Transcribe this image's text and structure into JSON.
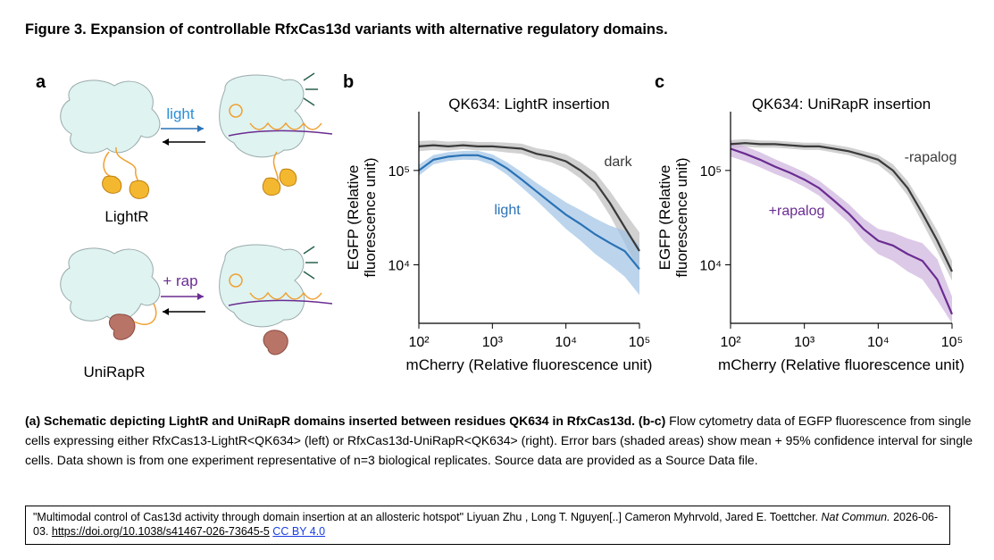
{
  "figure_title": "Figure 3. Expansion of controllable RfxCas13d variants with alternative regulatory domains.",
  "panel_a": {
    "panel": "a",
    "top_arrow_label": "light",
    "top_name": "LightR",
    "bottom_arrow_label": "+ rap",
    "bottom_name": "UniRapR"
  },
  "chart_data": [
    {
      "type": "line",
      "panel": "b",
      "title": "QK634: LightR insertion",
      "xlabel": "mCherry (Relative fluorescence unit)",
      "ylabel": [
        "EGFP (Relative",
        "fluorescence unit)"
      ],
      "log_x": true,
      "log_y": true,
      "xlim": [
        100,
        100000
      ],
      "ylim": [
        2400,
        420000
      ],
      "xticks": [
        {
          "value": 100,
          "label": "10²"
        },
        {
          "value": 1000,
          "label": "10³"
        },
        {
          "value": 10000,
          "label": "10⁴"
        },
        {
          "value": 100000,
          "label": "10⁵"
        }
      ],
      "yticks": [
        {
          "value": 10000,
          "label": "10⁴"
        },
        {
          "value": 100000,
          "label": "10⁵"
        }
      ],
      "x": [
        100,
        158,
        251,
        398,
        631,
        1000,
        1585,
        2512,
        3981,
        6310,
        10000,
        15849,
        25119,
        39811,
        63096,
        100000
      ],
      "series": [
        {
          "name": "dark",
          "color": "#3a3a3a",
          "band_color": "#bdbdbd",
          "values": [
            180000,
            185000,
            180000,
            185000,
            180000,
            180000,
            175000,
            170000,
            150000,
            140000,
            125000,
            100000,
            75000,
            45000,
            25000,
            14000
          ],
          "lower": [
            160000,
            165000,
            162000,
            168000,
            163000,
            162000,
            155000,
            150000,
            132000,
            122000,
            105000,
            82000,
            58000,
            33000,
            17000,
            8500
          ],
          "upper": [
            205000,
            208000,
            202000,
            205000,
            200000,
            200000,
            197000,
            192000,
            172000,
            162000,
            148000,
            122000,
            95000,
            60000,
            36000,
            22000
          ]
        },
        {
          "name": "light",
          "color": "#2a72b5",
          "band_color": "#9fc3e6",
          "values": [
            100000,
            130000,
            140000,
            145000,
            145000,
            130000,
            105000,
            80000,
            60000,
            45000,
            34000,
            27000,
            21000,
            17000,
            14000,
            9000
          ],
          "lower": [
            88000,
            116000,
            126000,
            130000,
            129000,
            114000,
            90000,
            66000,
            48000,
            34000,
            24000,
            18000,
            13000,
            10000,
            7500,
            4800
          ],
          "upper": [
            115000,
            146000,
            156000,
            161000,
            162000,
            148000,
            122000,
            96000,
            74000,
            58000,
            46000,
            38000,
            31000,
            26000,
            23000,
            16000
          ]
        }
      ]
    },
    {
      "type": "line",
      "panel": "c",
      "title": "QK634: UniRapR insertion",
      "xlabel": "mCherry (Relative fluorescence unit)",
      "ylabel": [
        "EGFP (Relative",
        "fluorescence unit)"
      ],
      "log_x": true,
      "log_y": true,
      "xlim": [
        100,
        100000
      ],
      "ylim": [
        2400,
        420000
      ],
      "xticks": [
        {
          "value": 100,
          "label": "10²"
        },
        {
          "value": 1000,
          "label": "10³"
        },
        {
          "value": 10000,
          "label": "10⁴"
        },
        {
          "value": 100000,
          "label": "10⁵"
        }
      ],
      "yticks": [
        {
          "value": 10000,
          "label": "10⁴"
        },
        {
          "value": 100000,
          "label": "10⁵"
        }
      ],
      "x": [
        100,
        158,
        251,
        398,
        631,
        1000,
        1585,
        2512,
        3981,
        6310,
        10000,
        15849,
        25119,
        39811,
        63096,
        100000
      ],
      "series": [
        {
          "name": "-rapalog",
          "color": "#3a3a3a",
          "band_color": "#bdbdbd",
          "values": [
            190000,
            195000,
            190000,
            190000,
            185000,
            180000,
            180000,
            170000,
            160000,
            145000,
            130000,
            100000,
            65000,
            35000,
            18000,
            8500
          ],
          "lower": [
            172000,
            178000,
            174000,
            174000,
            170000,
            165000,
            165000,
            155000,
            145000,
            130000,
            115000,
            86000,
            54000,
            28000,
            14000,
            6800
          ],
          "upper": [
            210000,
            214000,
            208000,
            207000,
            202000,
            197000,
            197000,
            187000,
            176000,
            161000,
            146000,
            116000,
            77000,
            43000,
            23000,
            11000
          ]
        },
        {
          "name": "+rapalog",
          "color": "#6a2c91",
          "band_color": "#cdb2dd",
          "values": [
            170000,
            150000,
            130000,
            110000,
            95000,
            80000,
            65000,
            48000,
            35000,
            24000,
            18000,
            16000,
            13000,
            11000,
            7000,
            3000
          ],
          "lower": [
            140000,
            125000,
            108000,
            92000,
            80000,
            67000,
            54000,
            39000,
            28000,
            18000,
            13000,
            11000,
            8500,
            7000,
            4200,
            2400
          ],
          "upper": [
            205000,
            180000,
            156000,
            132000,
            113000,
            96000,
            78000,
            59000,
            44000,
            31000,
            24000,
            22000,
            19000,
            17000,
            11500,
            4600
          ]
        }
      ]
    }
  ],
  "caption": {
    "bold": "(a) Schematic depicting LightR and UniRapR domains inserted between residues QK634 in RfxCas13d. (b-c)",
    "text": "Flow cytometry data of EGFP fluorescence from single cells expressing either RfxCas13-LightR<QK634> (left) or RfxCas13d-UniRapR<QK634> (right). Error bars (shaded areas) show mean + 95% confidence interval for single cells. Data shown is from one experiment representative of n=3 biological replicates. Source data are provided as a Source Data file."
  },
  "citation": {
    "text": "\"Multimodal control of Cas13d activity through domain insertion at an allosteric hotspot\" Liyuan Zhu , Long T. Nguyen[..] Cameron Myhrvold, Jared E. Toettcher.",
    "journal": "Nat Commun.",
    "date": "2026-06-03.",
    "doi": "https://doi.org/10.1038/s41467-026-73645-5",
    "license": "CC BY 4.0"
  }
}
